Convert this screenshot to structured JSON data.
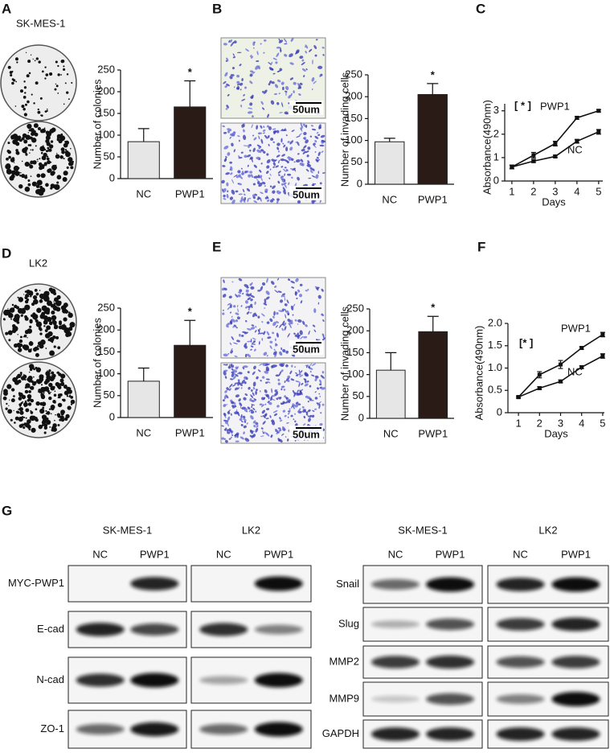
{
  "panels": [
    "A",
    "B",
    "C",
    "D",
    "E",
    "F",
    "G"
  ],
  "cell_lines": [
    "SK-MES-1",
    "LK2"
  ],
  "scale_bar": "50um",
  "chart_data": [
    {
      "type": "bar",
      "ylabel": "Number of colonies",
      "categories": [
        "NC",
        "PWP1"
      ],
      "values": [
        85,
        165
      ],
      "errors": [
        30,
        60
      ],
      "colors": [
        "#e6e6e6",
        "#2b1b17"
      ],
      "ylim": [
        0,
        250
      ],
      "yticks": [
        0,
        50,
        100,
        150,
        200,
        250
      ],
      "annotation": "*"
    },
    {
      "type": "bar",
      "ylabel": "Number of invading cells",
      "categories": [
        "NC",
        "PWP1"
      ],
      "values": [
        97,
        205
      ],
      "errors": [
        8,
        25
      ],
      "colors": [
        "#e6e6e6",
        "#2b1b17"
      ],
      "ylim": [
        0,
        250
      ],
      "yticks": [
        0,
        50,
        100,
        150,
        200,
        250
      ],
      "annotation": "*"
    },
    {
      "type": "line",
      "xlabel": "Days",
      "ylabel": "Absorbance(490nm)",
      "x": [
        1,
        2,
        3,
        4,
        5
      ],
      "xlim": [
        0.67,
        5.19
      ],
      "xticks": [
        1,
        2,
        3,
        4,
        5
      ],
      "ylim": [
        0,
        3.3
      ],
      "yticks": [
        0,
        1,
        2,
        3
      ],
      "annotation": "[ * ]",
      "series": [
        {
          "name": "PWP1",
          "color": "#111111",
          "values": [
            0.6,
            1.1,
            1.6,
            2.7,
            3.0
          ],
          "errors": [
            0.08,
            0.12,
            0.1,
            0.06,
            0.05
          ]
        },
        {
          "name": "NC",
          "color": "#111111",
          "values": [
            0.6,
            0.85,
            1.05,
            1.7,
            2.1
          ],
          "errors": [
            0.08,
            0.06,
            0.05,
            0.08,
            0.1
          ]
        }
      ]
    },
    {
      "type": "bar",
      "ylabel": "Number of colonies",
      "categories": [
        "NC",
        "PWP1"
      ],
      "values": [
        83,
        165
      ],
      "errors": [
        30,
        57
      ],
      "colors": [
        "#e6e6e6",
        "#2b1b17"
      ],
      "ylim": [
        0,
        250
      ],
      "yticks": [
        0,
        50,
        100,
        150,
        200,
        250
      ],
      "annotation": "*"
    },
    {
      "type": "bar",
      "ylabel": "Number of invading cells",
      "categories": [
        "NC",
        "PWP1"
      ],
      "values": [
        110,
        198
      ],
      "errors": [
        40,
        35
      ],
      "colors": [
        "#e6e6e6",
        "#2b1b17"
      ],
      "ylim": [
        0,
        250
      ],
      "yticks": [
        0,
        50,
        100,
        150,
        200,
        250
      ],
      "annotation": "*"
    },
    {
      "type": "line",
      "xlabel": "Days",
      "ylabel": "Absorbance(490nm)",
      "x": [
        1,
        2,
        3,
        4,
        5
      ],
      "xlim": [
        0.5,
        5.08
      ],
      "xticks": [
        1,
        2,
        3,
        4,
        5
      ],
      "ylim": [
        0,
        2.0
      ],
      "yticks": [
        0,
        0.5,
        {
          "value": 1,
          "label": "1.0"
        },
        1.5,
        {
          "value": 2,
          "label": "2.0"
        }
      ],
      "annotation": "[* ]",
      "series": [
        {
          "name": "PWP1",
          "color": "#111111",
          "values": [
            0.35,
            0.85,
            1.08,
            1.45,
            1.75
          ],
          "errors": [
            0.02,
            0.07,
            0.09,
            0.03,
            0.05
          ]
        },
        {
          "name": "NC",
          "color": "#111111",
          "values": [
            0.35,
            0.55,
            0.7,
            1.02,
            1.27
          ],
          "errors": [
            0.02,
            0.03,
            0.03,
            0.03,
            0.05
          ]
        }
      ]
    }
  ],
  "blots": [
    {
      "cell_lines": [
        "SK-MES-1",
        "LK2"
      ],
      "lanes": [
        "NC",
        "PWP1",
        "NC",
        "PWP1"
      ],
      "proteins": [
        "MYC-PWP1",
        "E-cad",
        "N-cad",
        "ZO-1"
      ]
    },
    {
      "cell_lines": [
        "SK-MES-1",
        "LK2"
      ],
      "lanes": [
        "NC",
        "PWP1",
        "NC",
        "PWP1"
      ],
      "proteins": [
        "Snail",
        "Slug",
        "MMP2",
        "MMP9",
        "GAPDH"
      ]
    }
  ]
}
